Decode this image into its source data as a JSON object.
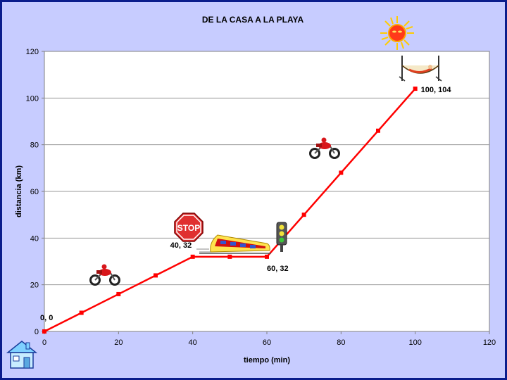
{
  "chart_data": {
    "type": "line",
    "title": "DE LA CASA A LA PLAYA",
    "xlabel": "tiempo (min)",
    "ylabel": "distancia (km)",
    "xlim": [
      0,
      120
    ],
    "ylim": [
      0,
      120
    ],
    "xticks": [
      0,
      20,
      40,
      60,
      80,
      100,
      120
    ],
    "yticks": [
      0,
      20,
      40,
      60,
      80,
      100,
      120
    ],
    "grid": "horizontal",
    "legend": "none",
    "series": [
      {
        "color": "#ff0000",
        "x": [
          0,
          10,
          20,
          30,
          40,
          50,
          60,
          70,
          80,
          90,
          100
        ],
        "y": [
          0,
          8,
          16,
          24,
          32,
          32,
          32,
          50,
          68,
          86,
          104
        ]
      }
    ],
    "annotations": [
      {
        "x": 0,
        "y": 0,
        "text": "0, 0"
      },
      {
        "x": 40,
        "y": 32,
        "text": "40, 32"
      },
      {
        "x": 60,
        "y": 32,
        "text": "60, 32"
      },
      {
        "x": 100,
        "y": 104,
        "text": "100, 104"
      }
    ],
    "stop_sign_text": "STOP"
  },
  "illustrations": [
    "house-icon",
    "motorcycle-icon",
    "stop-sign-icon",
    "train-icon",
    "traffic-light-icon",
    "sun-icon",
    "hammock-icon"
  ]
}
